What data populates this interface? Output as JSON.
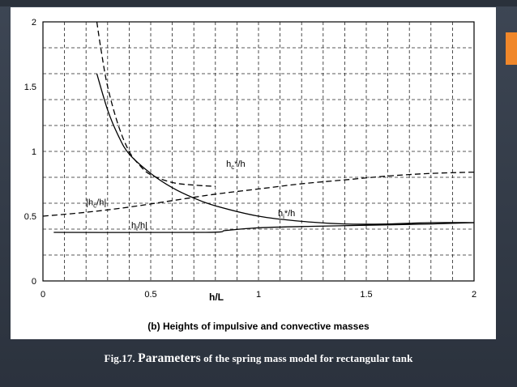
{
  "caption": {
    "prefix": "Fig.17. ",
    "emphasis": "Parameters",
    "rest": " of the spring mass model for rectangular tank"
  },
  "colors": {
    "accent": "#f0872a",
    "background": "#353d4a",
    "panel": "#ffffff",
    "ink": "#000000"
  },
  "chart_data": {
    "type": "line",
    "title": "(b) Heights of impulsive and convective masses",
    "xlabel": "h/L",
    "ylabel": "",
    "xlim": [
      0,
      2
    ],
    "ylim": [
      0,
      2
    ],
    "grid": true,
    "x_ticks": [
      "0",
      "0.5",
      "1",
      "1.5",
      "2"
    ],
    "y_ticks": [
      "0",
      "0.5",
      "1",
      "1.5",
      "2"
    ],
    "series": [
      {
        "name": "hc*/h",
        "style": "dashed",
        "x": [
          0.25,
          0.27,
          0.3,
          0.35,
          0.4,
          0.45,
          0.5,
          0.6,
          0.7,
          0.8
        ],
        "y": [
          2.0,
          1.78,
          1.5,
          1.2,
          1.0,
          0.89,
          0.82,
          0.76,
          0.74,
          0.73
        ]
      },
      {
        "name": "hc/h",
        "style": "dashed",
        "x": [
          0,
          0.2,
          0.4,
          0.6,
          0.8,
          1.0,
          1.2,
          1.4,
          1.6,
          1.8,
          2.0
        ],
        "y": [
          0.5,
          0.53,
          0.57,
          0.62,
          0.67,
          0.71,
          0.75,
          0.78,
          0.81,
          0.83,
          0.84
        ]
      },
      {
        "name": "hi*/h",
        "style": "solid",
        "x": [
          0.25,
          0.3,
          0.35,
          0.4,
          0.5,
          0.6,
          0.7,
          0.8,
          1.0,
          1.2,
          1.4,
          1.6,
          1.8,
          2.0
        ],
        "y": [
          1.6,
          1.32,
          1.12,
          0.98,
          0.83,
          0.72,
          0.64,
          0.58,
          0.5,
          0.46,
          0.44,
          0.44,
          0.45,
          0.45
        ]
      },
      {
        "name": "hi/h",
        "style": "solid",
        "x": [
          0.05,
          0.75,
          0.85,
          1.0,
          1.2,
          1.5,
          1.8,
          2.0
        ],
        "y": [
          0.375,
          0.375,
          0.39,
          0.41,
          0.42,
          0.43,
          0.44,
          0.45
        ]
      }
    ],
    "annotations": [
      {
        "label_main": "h",
        "label_sub": "c",
        "label_tail": "*/h",
        "x": 0.85,
        "y": 0.88,
        "anchor": "start"
      },
      {
        "label_main": "|h",
        "label_sub": "c",
        "label_tail": "/h|",
        "x": 0.2,
        "y": 0.585,
        "anchor": "start"
      },
      {
        "label_main": "h",
        "label_sub": "i",
        "label_tail": "*/h",
        "x": 1.09,
        "y": 0.5,
        "anchor": "start"
      },
      {
        "label_main": "h",
        "label_sub": "i",
        "label_tail": "/h|",
        "x": 0.41,
        "y": 0.405,
        "anchor": "start"
      }
    ]
  }
}
